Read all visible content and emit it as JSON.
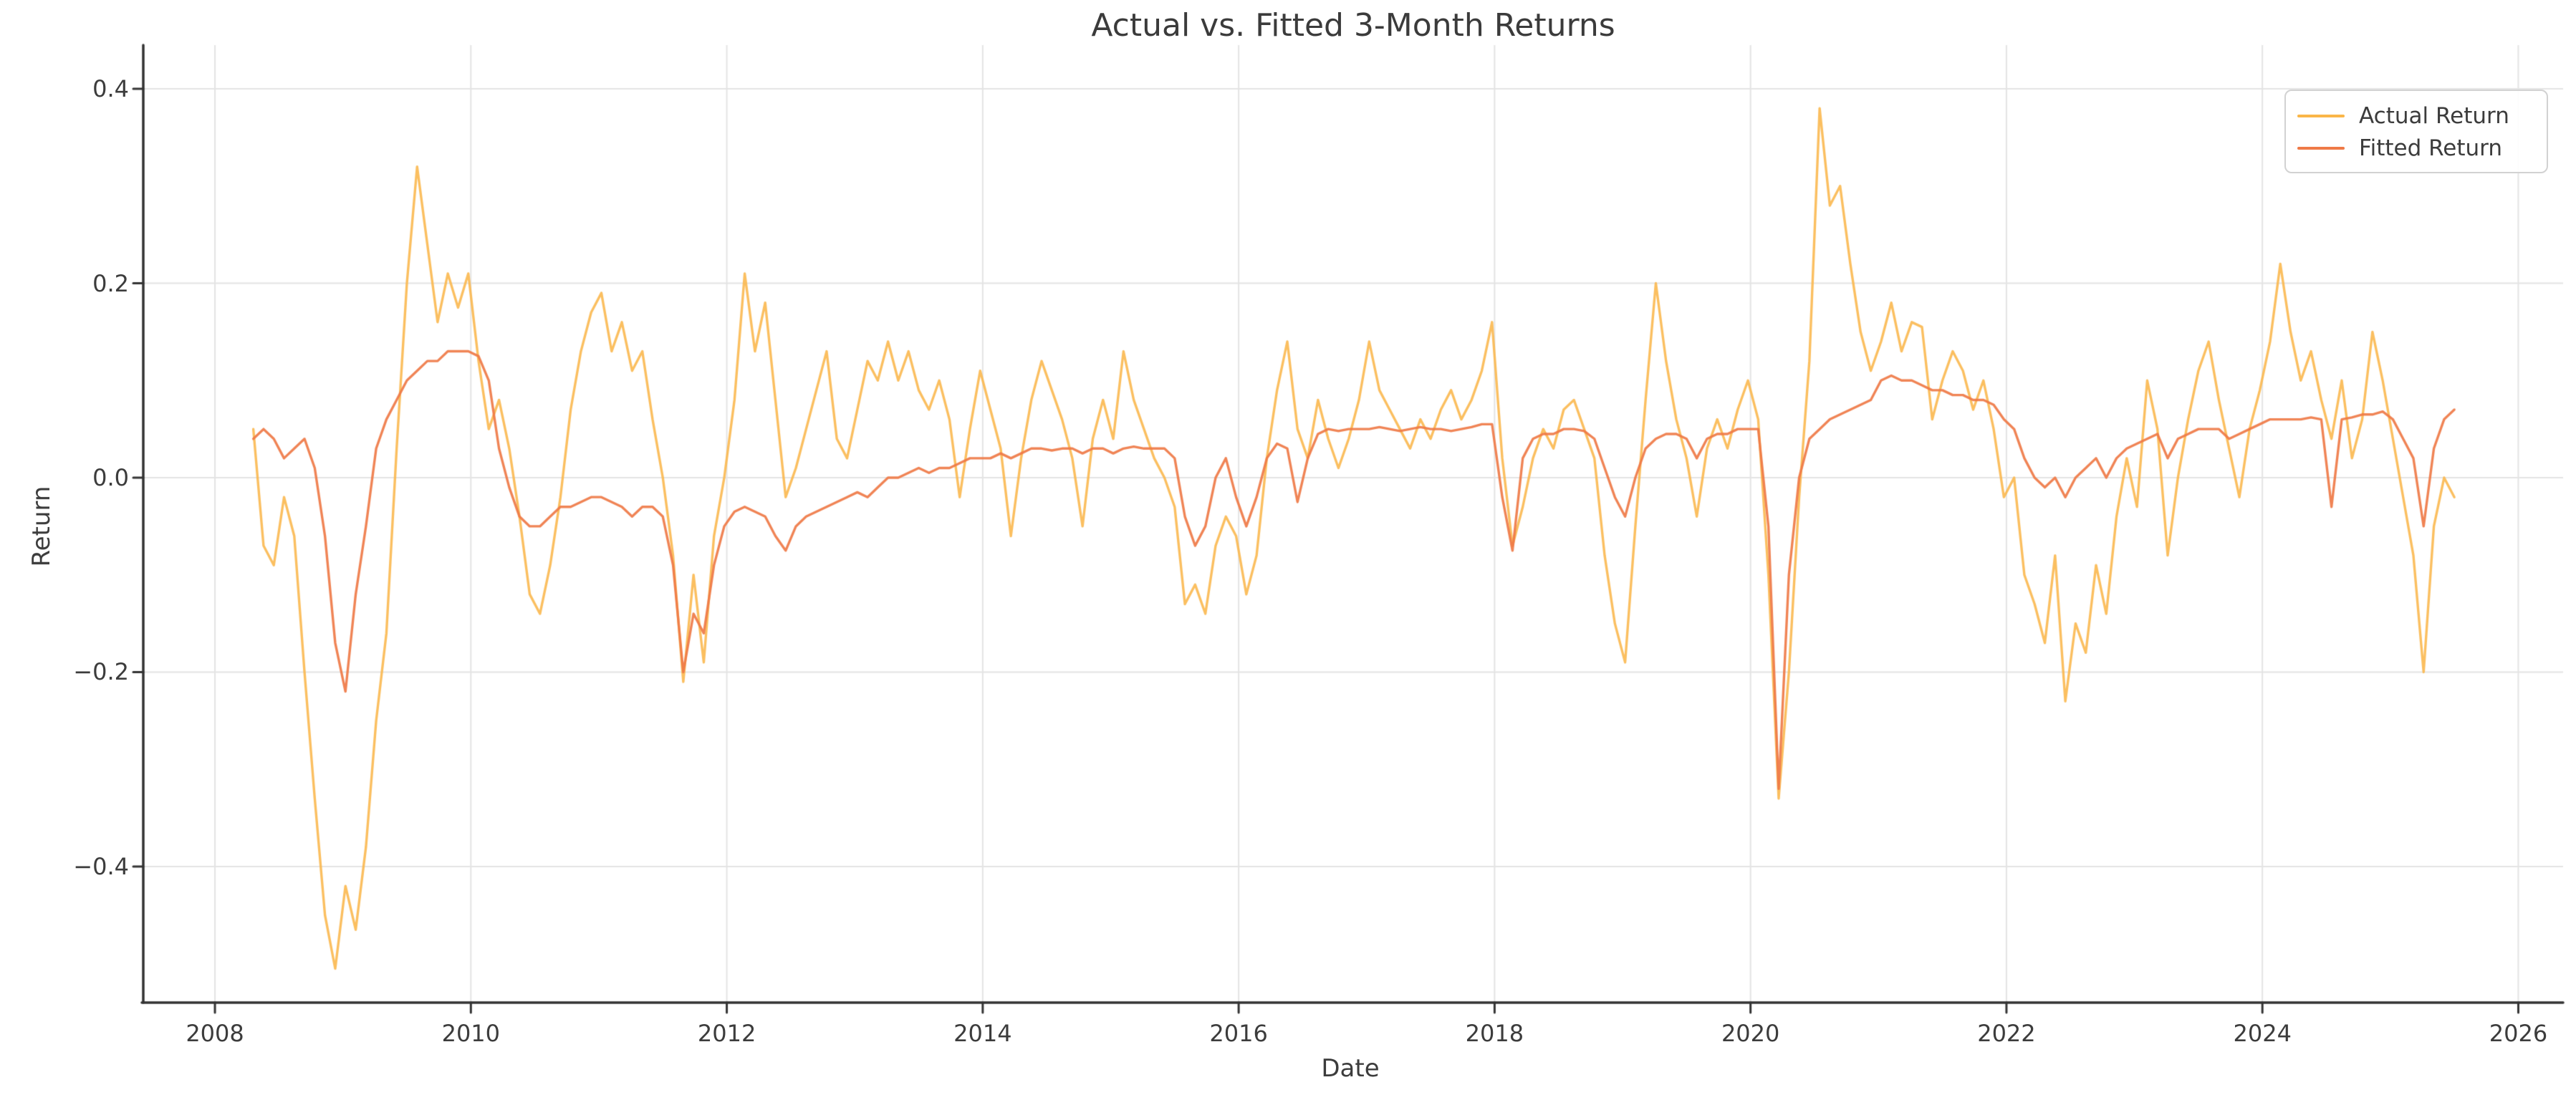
{
  "chart_data": {
    "type": "line",
    "title": "Actual vs. Fitted 3-Month Returns",
    "xlabel": "Date",
    "ylabel": "Return",
    "xlim": [
      2007.44,
      2026.35
    ],
    "ylim": [
      -0.54,
      0.445
    ],
    "grid": true,
    "legend_position": "upper right",
    "x_ticks": [
      2008,
      2010,
      2012,
      2014,
      2016,
      2018,
      2020,
      2022,
      2024,
      2026
    ],
    "x_tick_labels": [
      "2008",
      "2010",
      "2012",
      "2014",
      "2016",
      "2018",
      "2020",
      "2022",
      "2024",
      "2026"
    ],
    "y_ticks": [
      0.4,
      0.2,
      0.0,
      -0.2,
      -0.4
    ],
    "y_tick_labels": [
      "0.4",
      "0.2",
      "0.0",
      "−0.2",
      "−0.4"
    ],
    "x_start": 2008.3,
    "x_step": 0.08,
    "series": [
      {
        "name": "Actual Return",
        "color": "#fab648",
        "values": [
          0.05,
          -0.07,
          -0.09,
          -0.02,
          -0.06,
          -0.2,
          -0.33,
          -0.45,
          -0.505,
          -0.42,
          -0.465,
          -0.38,
          -0.25,
          -0.16,
          0.03,
          0.2,
          0.32,
          0.24,
          0.16,
          0.21,
          0.175,
          0.21,
          0.12,
          0.05,
          0.08,
          0.03,
          -0.04,
          -0.12,
          -0.14,
          -0.09,
          -0.02,
          0.07,
          0.13,
          0.17,
          0.19,
          0.13,
          0.16,
          0.11,
          0.13,
          0.06,
          0.0,
          -0.08,
          -0.21,
          -0.1,
          -0.19,
          -0.06,
          0.0,
          0.08,
          0.21,
          0.13,
          0.18,
          0.08,
          -0.02,
          0.01,
          0.05,
          0.09,
          0.13,
          0.04,
          0.02,
          0.07,
          0.12,
          0.1,
          0.14,
          0.1,
          0.13,
          0.09,
          0.07,
          0.1,
          0.06,
          -0.02,
          0.05,
          0.11,
          0.07,
          0.03,
          -0.06,
          0.02,
          0.08,
          0.12,
          0.09,
          0.06,
          0.02,
          -0.05,
          0.04,
          0.08,
          0.04,
          0.13,
          0.08,
          0.05,
          0.02,
          0.0,
          -0.03,
          -0.13,
          -0.11,
          -0.14,
          -0.07,
          -0.04,
          -0.06,
          -0.12,
          -0.08,
          0.02,
          0.09,
          0.14,
          0.05,
          0.02,
          0.08,
          0.04,
          0.01,
          0.04,
          0.08,
          0.14,
          0.09,
          0.07,
          0.05,
          0.03,
          0.06,
          0.04,
          0.07,
          0.09,
          0.06,
          0.08,
          0.11,
          0.16,
          0.02,
          -0.07,
          -0.03,
          0.02,
          0.05,
          0.03,
          0.07,
          0.08,
          0.05,
          0.02,
          -0.08,
          -0.15,
          -0.19,
          -0.05,
          0.08,
          0.2,
          0.12,
          0.06,
          0.02,
          -0.04,
          0.03,
          0.06,
          0.03,
          0.07,
          0.1,
          0.06,
          -0.1,
          -0.33,
          -0.2,
          -0.02,
          0.12,
          0.38,
          0.28,
          0.3,
          0.22,
          0.15,
          0.11,
          0.14,
          0.18,
          0.13,
          0.16,
          0.155,
          0.06,
          0.1,
          0.13,
          0.11,
          0.07,
          0.1,
          0.05,
          -0.02,
          0.0,
          -0.1,
          -0.13,
          -0.17,
          -0.08,
          -0.23,
          -0.15,
          -0.18,
          -0.09,
          -0.14,
          -0.04,
          0.02,
          -0.03,
          0.1,
          0.05,
          -0.08,
          0.0,
          0.06,
          0.11,
          0.14,
          0.08,
          0.03,
          -0.02,
          0.05,
          0.09,
          0.14,
          0.22,
          0.15,
          0.1,
          0.13,
          0.08,
          0.04,
          0.1,
          0.02,
          0.06,
          0.15,
          0.1,
          0.04,
          -0.02,
          -0.08,
          -0.2,
          -0.05,
          0.0,
          -0.02
        ]
      },
      {
        "name": "Fitted Return",
        "color": "#ef7a47",
        "values": [
          0.04,
          0.05,
          0.04,
          0.02,
          0.03,
          0.04,
          0.01,
          -0.06,
          -0.17,
          -0.22,
          -0.12,
          -0.05,
          0.03,
          0.06,
          0.08,
          0.1,
          0.11,
          0.12,
          0.12,
          0.13,
          0.13,
          0.13,
          0.125,
          0.1,
          0.03,
          -0.01,
          -0.04,
          -0.05,
          -0.05,
          -0.04,
          -0.03,
          -0.03,
          -0.025,
          -0.02,
          -0.02,
          -0.025,
          -0.03,
          -0.04,
          -0.03,
          -0.03,
          -0.04,
          -0.09,
          -0.2,
          -0.14,
          -0.16,
          -0.09,
          -0.05,
          -0.035,
          -0.03,
          -0.035,
          -0.04,
          -0.06,
          -0.075,
          -0.05,
          -0.04,
          -0.035,
          -0.03,
          -0.025,
          -0.02,
          -0.015,
          -0.02,
          -0.01,
          0.0,
          0.0,
          0.005,
          0.01,
          0.005,
          0.01,
          0.01,
          0.015,
          0.02,
          0.02,
          0.02,
          0.025,
          0.02,
          0.025,
          0.03,
          0.03,
          0.028,
          0.03,
          0.03,
          0.025,
          0.03,
          0.03,
          0.025,
          0.03,
          0.032,
          0.03,
          0.03,
          0.03,
          0.02,
          -0.04,
          -0.07,
          -0.05,
          0.0,
          0.02,
          -0.02,
          -0.05,
          -0.02,
          0.02,
          0.035,
          0.03,
          -0.025,
          0.02,
          0.045,
          0.05,
          0.048,
          0.05,
          0.05,
          0.05,
          0.052,
          0.05,
          0.048,
          0.05,
          0.052,
          0.05,
          0.05,
          0.048,
          0.05,
          0.052,
          0.055,
          0.055,
          -0.02,
          -0.075,
          0.02,
          0.04,
          0.045,
          0.045,
          0.05,
          0.05,
          0.048,
          0.04,
          0.01,
          -0.02,
          -0.04,
          0.0,
          0.03,
          0.04,
          0.045,
          0.045,
          0.04,
          0.02,
          0.04,
          0.045,
          0.045,
          0.05,
          0.05,
          0.05,
          -0.05,
          -0.32,
          -0.1,
          0.0,
          0.04,
          0.05,
          0.06,
          0.065,
          0.07,
          0.075,
          0.08,
          0.1,
          0.105,
          0.1,
          0.1,
          0.095,
          0.09,
          0.09,
          0.085,
          0.085,
          0.08,
          0.08,
          0.075,
          0.06,
          0.05,
          0.02,
          0.0,
          -0.01,
          0.0,
          -0.02,
          0.0,
          0.01,
          0.02,
          0.0,
          0.02,
          0.03,
          0.035,
          0.04,
          0.045,
          0.02,
          0.04,
          0.045,
          0.05,
          0.05,
          0.05,
          0.04,
          0.045,
          0.05,
          0.055,
          0.06,
          0.06,
          0.06,
          0.06,
          0.062,
          0.06,
          -0.03,
          0.06,
          0.062,
          0.065,
          0.065,
          0.068,
          0.06,
          0.04,
          0.02,
          -0.05,
          0.03,
          0.06,
          0.07
        ]
      }
    ],
    "style": {
      "grid_color": "#e4e4e4",
      "spine_color": "#333333",
      "text_color": "#3c3c3c",
      "background": "#ffffff"
    }
  }
}
